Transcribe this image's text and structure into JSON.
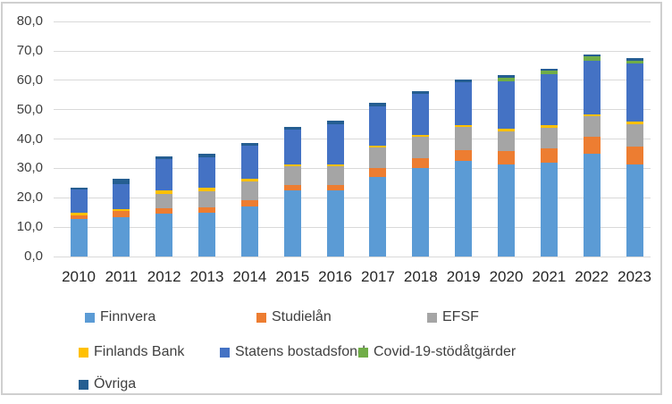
{
  "chart_data": {
    "type": "bar",
    "stacked": true,
    "title": "",
    "xlabel": "",
    "ylabel": "",
    "ylim": [
      0,
      80
    ],
    "y_tick_step": 10,
    "y_ticks": [
      "80,0",
      "70,0",
      "60,0",
      "50,0",
      "40,0",
      "30,0",
      "20,0",
      "10,0",
      "0,0"
    ],
    "grid": true,
    "legend_position": "bottom",
    "decimal_separator": ",",
    "categories": [
      "2010",
      "2011",
      "2012",
      "2013",
      "2014",
      "2015",
      "2016",
      "2017",
      "2018",
      "2019",
      "2020",
      "2021",
      "2022",
      "2023"
    ],
    "series": [
      {
        "name": "Finnvera",
        "color": "#5B9BD5",
        "values": [
          12.7,
          13.4,
          14.5,
          14.9,
          17.1,
          22.4,
          22.4,
          27.0,
          30.0,
          32.5,
          31.3,
          32.0,
          35.1,
          31.5
        ]
      },
      {
        "name": "Studielån",
        "color": "#ED7D31",
        "values": [
          1.2,
          2.1,
          1.8,
          1.9,
          2.0,
          2.0,
          2.0,
          3.0,
          3.5,
          3.8,
          4.6,
          4.8,
          5.6,
          6.1
        ]
      },
      {
        "name": "EFSF",
        "color": "#A5A5A5",
        "values": [
          0,
          0,
          5.1,
          5.3,
          6.5,
          6.4,
          6.4,
          7.1,
          7.2,
          7.9,
          6.8,
          7.1,
          7.1,
          7.5
        ]
      },
      {
        "name": "Finlands Bank",
        "color": "#FFC000",
        "values": [
          0.9,
          0.7,
          1.0,
          1.2,
          1.0,
          0.7,
          0.7,
          0.7,
          0.7,
          0.7,
          0.8,
          0.8,
          0.7,
          0.9
        ]
      },
      {
        "name": "Statens bostadsfond",
        "color": "#4472C4",
        "values": [
          8.1,
          8.6,
          10.7,
          10.6,
          11.2,
          11.7,
          13.5,
          13.5,
          14.0,
          14.4,
          16.3,
          17.3,
          18.3,
          19.7
        ]
      },
      {
        "name": "Covid-19-stödåtgärder",
        "color": "#70AD47",
        "values": [
          0,
          0,
          0,
          0,
          0,
          0,
          0,
          0,
          0,
          0,
          1.2,
          1.2,
          1.3,
          1.0
        ]
      },
      {
        "name": "Övriga",
        "color": "#255E91",
        "values": [
          0.5,
          1.6,
          1.1,
          1.2,
          1.0,
          0.9,
          1.2,
          1.0,
          1.0,
          1.0,
          0.7,
          0.8,
          0.7,
          0.8
        ]
      }
    ],
    "colors": {
      "gridline": "#d9d9d9",
      "frame_border": "#cfcfcf",
      "axis_text": "#3f3f3f",
      "category_text": "#262626",
      "background": "#ffffff"
    }
  }
}
